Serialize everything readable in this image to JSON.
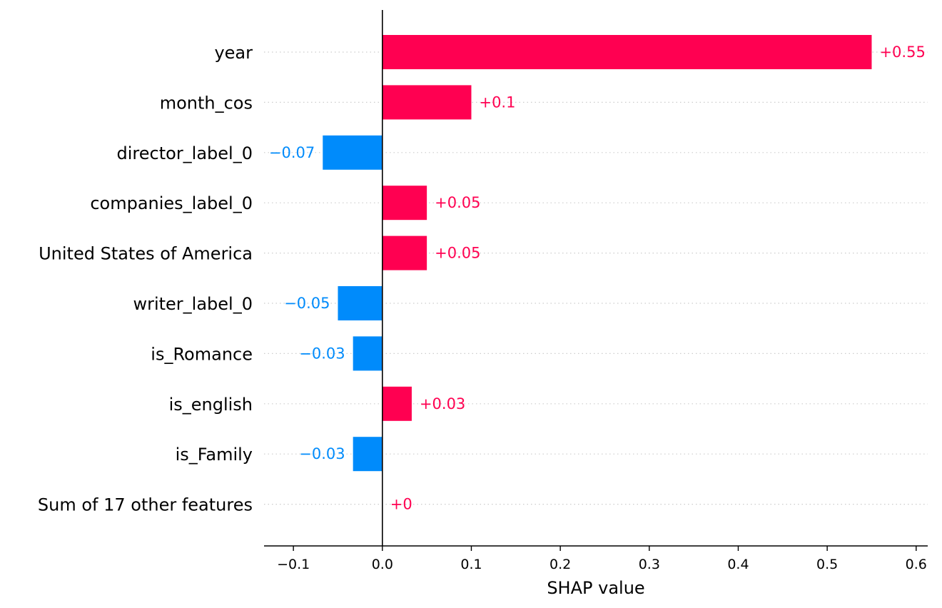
{
  "chart_data": {
    "type": "bar",
    "orientation": "horizontal",
    "categories": [
      "year",
      "month_cos",
      "director_label_0",
      "companies_label_0",
      "United States of America",
      "writer_label_0",
      "is_Romance",
      "is_english",
      "is_Family",
      "Sum of 17 other features"
    ],
    "values": [
      0.55,
      0.1,
      -0.067,
      0.05,
      0.05,
      -0.05,
      -0.033,
      0.033,
      -0.033,
      0.0
    ],
    "value_labels": [
      "+0.55",
      "+0.1",
      "−0.07",
      "+0.05",
      "+0.05",
      "−0.05",
      "−0.03",
      "+0.03",
      "−0.03",
      "+0"
    ],
    "xlabel": "SHAP value",
    "xlim": [
      -0.133,
      0.613
    ],
    "x_ticks": [
      -0.1,
      0.0,
      0.1,
      0.2,
      0.3,
      0.4,
      0.5,
      0.6
    ],
    "x_tick_labels": [
      "−0.1",
      "0.0",
      "0.1",
      "0.2",
      "0.3",
      "0.4",
      "0.5",
      "0.6"
    ],
    "grid": false,
    "colors": {
      "positive": "#ff0051",
      "negative": "#008bfb",
      "axis": "#000000",
      "guide": "#cccccc"
    }
  }
}
